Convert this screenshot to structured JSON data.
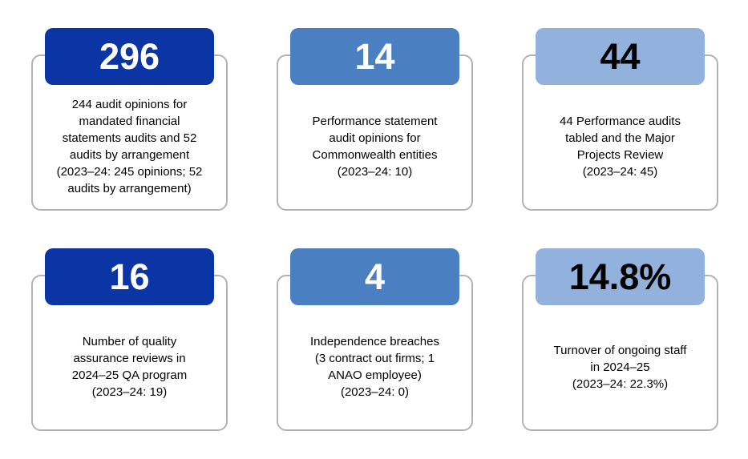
{
  "colors": {
    "background": "#FFFFFF",
    "card_border": "#B3B3B3",
    "dark_blue": "#0B34A4",
    "medium_blue": "#4A80C2",
    "light_blue": "#92B1DC",
    "text": "#000000"
  },
  "cards": [
    {
      "value": "296",
      "value_color": "#FFFFFF",
      "badge_color": "#0B34A4",
      "description": "244 audit opinions for\nmandated financial\nstatements audits and 52\naudits by arrangement\n(2023–24: 245 opinions; 52\naudits by arrangement)"
    },
    {
      "value": "14",
      "value_color": "#FFFFFF",
      "badge_color": "#4A80C2",
      "description": "Performance statement\naudit opinions for\nCommonwealth entities\n(2023–24: 10)"
    },
    {
      "value": "44",
      "value_color": "#000000",
      "badge_color": "#92B1DC",
      "description": "44 Performance audits\ntabled and the Major\nProjects Review\n(2023–24: 45)"
    },
    {
      "value": "16",
      "value_color": "#FFFFFF",
      "badge_color": "#0B34A4",
      "description": "Number of quality\nassurance reviews in\n2024–25 QA program\n(2023–24: 19)"
    },
    {
      "value": "4",
      "value_color": "#FFFFFF",
      "badge_color": "#4A80C2",
      "description": "Independence breaches\n(3 contract out firms; 1\nANAO employee)\n(2023–24: 0)"
    },
    {
      "value": "14.8%",
      "value_color": "#000000",
      "badge_color": "#92B1DC",
      "description": "Turnover of ongoing staff\nin 2024–25\n(2023–24: 22.3%)"
    }
  ],
  "chart_data": {
    "type": "table",
    "title": "",
    "items": [
      {
        "value": 296,
        "display_value": "296",
        "label": "244 audit opinions for mandated financial statements audits and 52 audits by arrangement (2023–24: 245 opinions; 52 audits by arrangement)"
      },
      {
        "value": 14,
        "display_value": "14",
        "label": "Performance statement audit opinions for Commonwealth entities (2023–24: 10)"
      },
      {
        "value": 44,
        "display_value": "44",
        "label": "44 Performance audits tabled and the Major Projects Review (2023–24: 45)"
      },
      {
        "value": 16,
        "display_value": "16",
        "label": "Number of quality assurance reviews in 2024–25 QA program (2023–24: 19)"
      },
      {
        "value": 4,
        "display_value": "4",
        "label": "Independence breaches (3 contract out firms; 1 ANAO employee) (2023–24: 0)"
      },
      {
        "value": 14.8,
        "display_value": "14.8%",
        "label": "Turnover of ongoing staff in 2024–25 (2023–24: 22.3%)"
      }
    ],
    "layout": "2 rows x 3 columns of stat cards",
    "legend_position": "none",
    "grid": false
  }
}
